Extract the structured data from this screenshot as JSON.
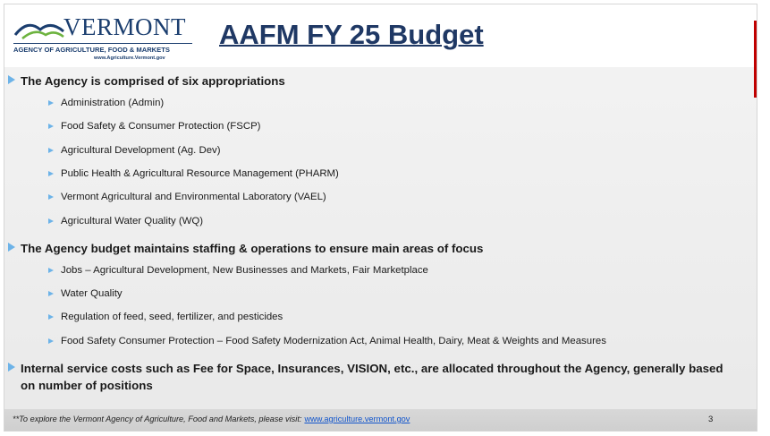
{
  "header": {
    "logo": {
      "name": "VERMONT",
      "agency": "AGENCY OF AGRICULTURE, FOOD & MARKETS",
      "url": "www.Agriculture.Vermont.gov"
    },
    "title": "AAFM FY 25 Budget"
  },
  "bullets": [
    {
      "text": "The Agency is comprised of six appropriations",
      "items": [
        "Administration (Admin)",
        "Food Safety & Consumer Protection (FSCP)",
        "Agricultural Development (Ag. Dev)",
        "Public Health & Agricultural Resource Management (PHARM)",
        "Vermont Agricultural and Environmental Laboratory (VAEL)",
        "Agricultural Water Quality (WQ)"
      ]
    },
    {
      "text": "The Agency budget maintains staffing & operations to ensure main areas of focus",
      "items": [
        "Jobs – Agricultural Development, New Businesses and Markets, Fair Marketplace",
        "Water Quality",
        "Regulation of feed, seed, fertilizer, and pesticides",
        "Food Safety Consumer Protection – Food Safety Modernization Act, Animal Health, Dairy, Meat & Weights and Measures"
      ]
    },
    {
      "text": "Internal service costs such as Fee for Space, Insurances, VISION, etc., are allocated throughout the Agency, generally based on number of positions",
      "items": []
    }
  ],
  "footer": {
    "note": "**To explore the Vermont Agency of Agriculture, Food and Markets, please visit:",
    "link": "www.agriculture.vermont.gov",
    "page": "3"
  }
}
